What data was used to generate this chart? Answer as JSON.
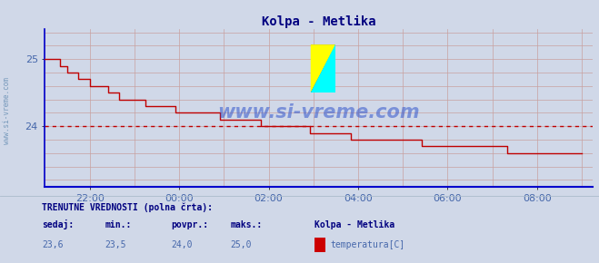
{
  "title": "Kolpa - Metlika",
  "title_color": "#000080",
  "bg_color": "#d0d8e8",
  "plot_bg_color": "#d0d8e8",
  "grid_color_h": "#c8a0a0",
  "grid_color_v": "#c8a0a0",
  "line_color": "#c00000",
  "avg_line_color": "#c00000",
  "avg_line_value": 24.0,
  "ylim_lo": 23.1,
  "ylim_hi": 25.45,
  "yticks": [
    24,
    25
  ],
  "watermark": "www.si-vreme.com",
  "watermark_color": "#3355cc",
  "sidebar_text": "www.si-vreme.com",
  "sidebar_color": "#7799bb",
  "footer_label1": "TRENUTNE VREDNOSTI (polna črta):",
  "footer_label2": "sedaj:",
  "footer_label3": "min.:",
  "footer_label4": "povpr.:",
  "footer_label5": "maks.:",
  "footer_val1": "23,6",
  "footer_val2": "23,5",
  "footer_val3": "24,0",
  "footer_val4": "25,0",
  "footer_station": "Kolpa - Metlika",
  "footer_legend": "temperatura[C]",
  "footer_color": "#000080",
  "footer_val_color": "#4466aa",
  "legend_rect_color": "#cc0000",
  "arrow_color": "#cc0000",
  "spine_color": "#0000cc",
  "tick_label_color": "#4466aa",
  "tick_positions_min": [
    60,
    180,
    300,
    420,
    540,
    660
  ],
  "tick_labels": [
    "22:00",
    "00:00",
    "02:00",
    "04:00",
    "06:00",
    "08:00"
  ],
  "total_minutes": 735,
  "waypoints_x": [
    0,
    3,
    6,
    10,
    14,
    18,
    22,
    26,
    30,
    35,
    40,
    46,
    52,
    58,
    64,
    70,
    76,
    82,
    88,
    94,
    100,
    106,
    112,
    118,
    124,
    130,
    136,
    140,
    143,
    144
  ],
  "waypoints_y": [
    25.0,
    25.0,
    24.8,
    24.7,
    24.6,
    24.5,
    24.4,
    24.35,
    24.3,
    24.25,
    24.2,
    24.15,
    24.1,
    24.05,
    24.0,
    23.95,
    23.9,
    23.85,
    23.8,
    23.78,
    23.75,
    23.72,
    23.7,
    23.67,
    23.65,
    23.62,
    23.6,
    23.57,
    23.55,
    23.6
  ]
}
